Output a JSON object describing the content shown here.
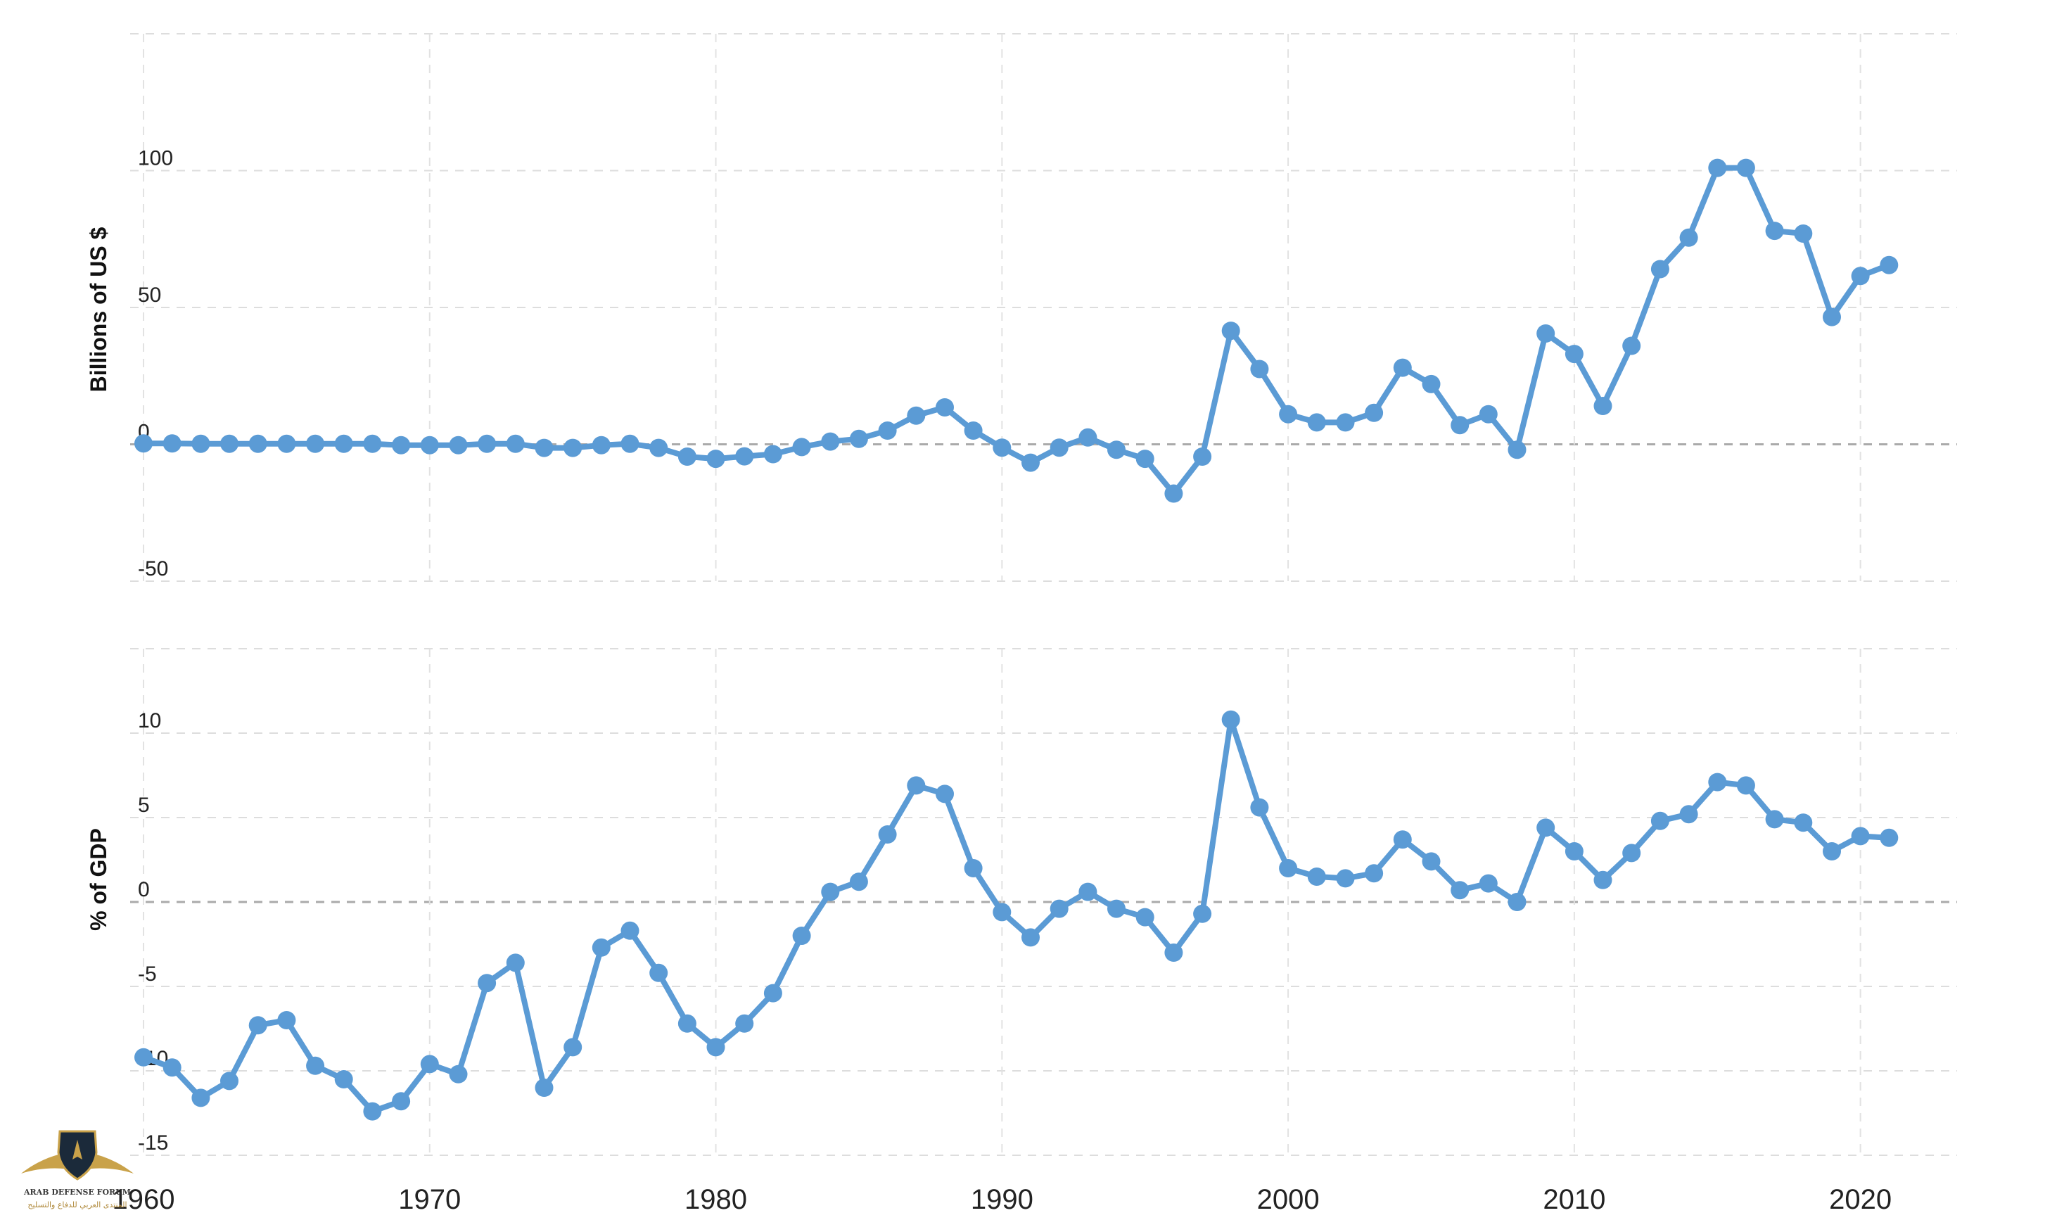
{
  "chart_data": [
    {
      "type": "line",
      "ylabel": "Billions of US $",
      "ylim": [
        -50,
        150
      ],
      "yticks": [
        -50,
        0,
        50,
        100
      ],
      "xlim": [
        1960,
        2022
      ],
      "xticks": [
        1960,
        1970,
        1980,
        1990,
        2000,
        2010,
        2020
      ],
      "grid": true,
      "series": [
        {
          "color": "#5b9bd5",
          "x": [
            1960,
            1961,
            1962,
            1963,
            1964,
            1965,
            1966,
            1967,
            1968,
            1969,
            1970,
            1971,
            1972,
            1973,
            1974,
            1975,
            1976,
            1977,
            1978,
            1979,
            1980,
            1981,
            1982,
            1983,
            1984,
            1985,
            1986,
            1987,
            1988,
            1989,
            1990,
            1991,
            1992,
            1993,
            1994,
            1995,
            1996,
            1997,
            1998,
            1999,
            2000,
            2001,
            2002,
            2003,
            2004,
            2005,
            2006,
            2007,
            2008,
            2009,
            2010,
            2011,
            2012,
            2013,
            2014,
            2015,
            2016,
            2017,
            2018,
            2019,
            2020,
            2021
          ],
          "y": [
            0.3,
            0.3,
            0.2,
            0.2,
            0.2,
            0.2,
            0.2,
            0.2,
            0.2,
            -0.3,
            -0.3,
            -0.3,
            0.2,
            0.2,
            -1.3,
            -1.3,
            -0.3,
            0.2,
            -1.3,
            -4.5,
            -5.3,
            -4.4,
            -3.6,
            -1.0,
            1.0,
            2.0,
            5.0,
            10.5,
            13.5,
            5.0,
            -1.2,
            -6.7,
            -1.2,
            2.5,
            -2.0,
            -5.3,
            -18.0,
            -4.5,
            41.5,
            27.5,
            11.0,
            8.0,
            8.0,
            11.5,
            28.0,
            22.0,
            7.0,
            11.0,
            -2.0,
            40.5,
            33.0,
            14.0,
            36.0,
            64.0,
            75.5,
            101.0,
            101.0,
            78.0,
            77.0,
            46.5,
            61.5,
            65.5
          ]
        }
      ]
    },
    {
      "type": "line",
      "ylabel": "% of GDP",
      "ylim": [
        -15,
        15
      ],
      "yticks": [
        -15,
        -10,
        -5,
        0,
        5,
        10
      ],
      "xlim": [
        1960,
        2022
      ],
      "xticks": [
        1960,
        1970,
        1980,
        1990,
        2000,
        2010,
        2020
      ],
      "grid": true,
      "series": [
        {
          "color": "#5b9bd5",
          "x": [
            1960,
            1961,
            1962,
            1963,
            1964,
            1965,
            1966,
            1967,
            1968,
            1969,
            1970,
            1971,
            1972,
            1973,
            1974,
            1975,
            1976,
            1977,
            1978,
            1979,
            1980,
            1981,
            1982,
            1983,
            1984,
            1985,
            1986,
            1987,
            1988,
            1989,
            1990,
            1991,
            1992,
            1993,
            1994,
            1995,
            1996,
            1997,
            1998,
            1999,
            2000,
            2001,
            2002,
            2003,
            2004,
            2005,
            2006,
            2007,
            2008,
            2009,
            2010,
            2011,
            2012,
            2013,
            2014,
            2015,
            2016,
            2017,
            2018,
            2019,
            2020,
            2021
          ],
          "y": [
            -9.2,
            -9.8,
            -11.6,
            -10.6,
            -7.3,
            -7.0,
            -9.7,
            -10.5,
            -12.4,
            -11.8,
            -9.6,
            -10.2,
            -4.8,
            -3.6,
            -11.0,
            -8.6,
            -2.7,
            -1.7,
            -4.2,
            -7.2,
            -8.6,
            -7.2,
            -5.4,
            -2.0,
            0.6,
            1.2,
            4.0,
            6.9,
            6.4,
            2.0,
            -0.6,
            -2.1,
            -0.4,
            0.6,
            -0.4,
            -0.9,
            -3.0,
            -0.7,
            10.8,
            5.6,
            2.0,
            1.5,
            1.4,
            1.7,
            3.7,
            2.4,
            0.7,
            1.1,
            0.0,
            4.4,
            3.0,
            1.3,
            2.9,
            4.8,
            5.2,
            7.1,
            6.9,
            4.9,
            4.7,
            3.0,
            3.9,
            3.8
          ]
        }
      ]
    }
  ],
  "logo": {
    "name": "ARAB DEFENSE FORUM",
    "arabic": "المنتدى العربي للدفاع والتسليح",
    "colors": {
      "gold": "#c9a24a",
      "dark": "#1b2a3a"
    }
  }
}
